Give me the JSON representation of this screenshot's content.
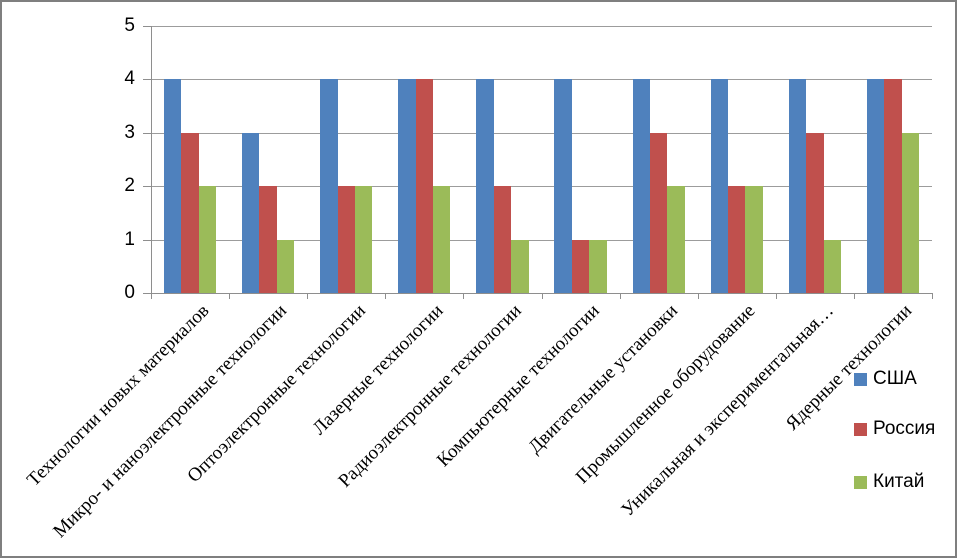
{
  "chart_data": {
    "type": "bar",
    "title": "",
    "xlabel": "",
    "ylabel": "",
    "ylim": [
      0,
      5
    ],
    "yticks": [
      0,
      1,
      2,
      3,
      4,
      5
    ],
    "grid": true,
    "legend_position": "right",
    "categories": [
      "Технологии новых материалов",
      "Микро- и наноэлектронные технологии",
      "Оптоэлектронные технологии",
      "Лазерные технологии",
      "Радиоэлектронные технологии",
      "Компьютерные технологии",
      "Двигательные установки",
      "Промышленное оборудование",
      "Уникальная и экспериментальная…",
      "Ядерные технологии"
    ],
    "series": [
      {
        "name": "США",
        "color": "#4F81BD",
        "values": [
          4,
          3,
          4,
          4,
          4,
          4,
          4,
          4,
          4,
          4
        ]
      },
      {
        "name": "Россия",
        "color": "#C0504D",
        "values": [
          3,
          2,
          2,
          4,
          2,
          1,
          3,
          2,
          3,
          4
        ]
      },
      {
        "name": "Китай",
        "color": "#9BBB59",
        "values": [
          2,
          1,
          2,
          2,
          1,
          1,
          2,
          2,
          1,
          3
        ]
      }
    ],
    "style": {
      "grid_color": "#9c9c9c",
      "axis_color": "#8e8e8e",
      "frame_border_color": "#7f7f7f",
      "background": "#ffffff",
      "text_color": "#000000"
    }
  }
}
